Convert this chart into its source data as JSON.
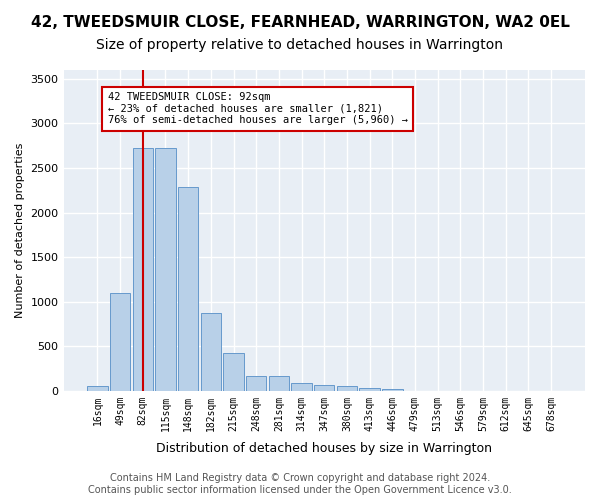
{
  "title": "42, TWEEDSMUIR CLOSE, FEARNHEAD, WARRINGTON, WA2 0EL",
  "subtitle": "Size of property relative to detached houses in Warrington",
  "xlabel": "Distribution of detached houses by size in Warrington",
  "ylabel": "Number of detached properties",
  "bar_values": [
    55,
    1100,
    2730,
    2730,
    2290,
    870,
    425,
    170,
    170,
    90,
    60,
    50,
    30,
    25,
    0,
    0,
    0,
    0,
    0,
    0,
    0
  ],
  "bar_labels": [
    "16sqm",
    "49sqm",
    "82sqm",
    "115sqm",
    "148sqm",
    "182sqm",
    "215sqm",
    "248sqm",
    "281sqm",
    "314sqm",
    "347sqm",
    "380sqm",
    "413sqm",
    "446sqm",
    "479sqm",
    "513sqm",
    "546sqm",
    "579sqm",
    "612sqm",
    "645sqm",
    "678sqm"
  ],
  "bar_color": "#b8d0e8",
  "bar_edge_color": "#6699cc",
  "vline_x": 2,
  "vline_color": "#cc0000",
  "annotation_text": "42 TWEEDSMUIR CLOSE: 92sqm\n← 23% of detached houses are smaller (1,821)\n76% of semi-detached houses are larger (5,960) →",
  "annotation_box_color": "#ffffff",
  "annotation_box_edge_color": "#cc0000",
  "ylim": [
    0,
    3600
  ],
  "yticks": [
    0,
    500,
    1000,
    1500,
    2000,
    2500,
    3000,
    3500
  ],
  "background_color": "#e8eef5",
  "grid_color": "#ffffff",
  "title_fontsize": 11,
  "subtitle_fontsize": 10,
  "footer_text": "Contains HM Land Registry data © Crown copyright and database right 2024.\nContains public sector information licensed under the Open Government Licence v3.0.",
  "footer_fontsize": 7
}
